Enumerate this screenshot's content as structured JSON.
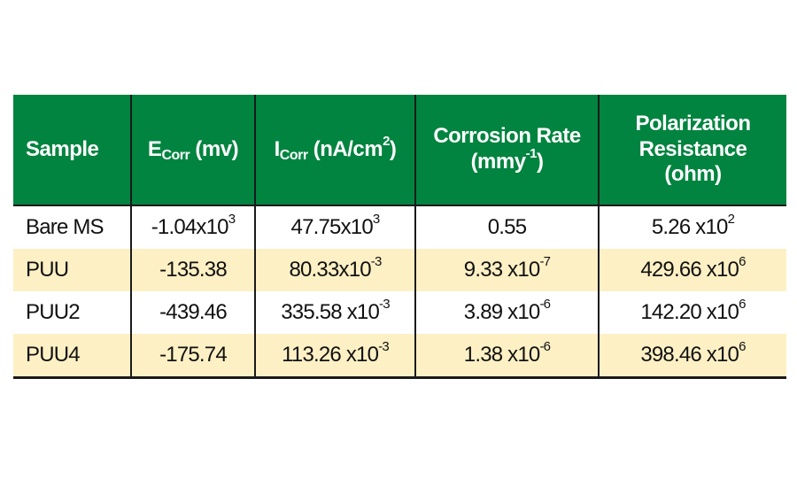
{
  "colors": {
    "header_bg": "#00843f",
    "alt_row_bg": "#fdf0c4"
  },
  "header": {
    "sample": "Sample",
    "ecorr": {
      "main": "E",
      "sub": "Corr",
      "unit": " (mv)"
    },
    "icorr": {
      "main": "I",
      "sub": "Corr",
      "unit": " (nA/cm",
      "sup": "2",
      "close": ")"
    },
    "corrosion_rate": {
      "line1": "Corrosion Rate",
      "unit": "(mmy",
      "sup": "-1",
      "close": ")"
    },
    "polarization": {
      "line1": "Polarization",
      "line2": "Resistance",
      "line3": "(ohm)"
    }
  },
  "rows": [
    {
      "sample": "Bare MS",
      "ecorr": {
        "base": "-1.04x10",
        "sup": "3"
      },
      "icorr": {
        "base": "47.75x10",
        "sup": "3"
      },
      "rate": {
        "base": "0.55",
        "sup": ""
      },
      "resistance": {
        "base": "5.26 x10",
        "sup": "2"
      }
    },
    {
      "sample": "PUU",
      "ecorr": {
        "base": "-135.38",
        "sup": ""
      },
      "icorr": {
        "base": "80.33x10",
        "sup": "-3"
      },
      "rate": {
        "base": "9.33 x10",
        "sup": "-7"
      },
      "resistance": {
        "base": "429.66 x10",
        "sup": "6"
      }
    },
    {
      "sample": "PUU2",
      "ecorr": {
        "base": "-439.46",
        "sup": ""
      },
      "icorr": {
        "base": "335.58 x10",
        "sup": "-3"
      },
      "rate": {
        "base": "3.89 x10",
        "sup": "-6"
      },
      "resistance": {
        "base": "142.20 x10",
        "sup": "6"
      }
    },
    {
      "sample": "PUU4",
      "ecorr": {
        "base": "-175.74",
        "sup": ""
      },
      "icorr": {
        "base": "113.26 x10",
        "sup": "-3"
      },
      "rate": {
        "base": "1.38 x10",
        "sup": "-6"
      },
      "resistance": {
        "base": "398.46 x10",
        "sup": "6"
      }
    }
  ]
}
